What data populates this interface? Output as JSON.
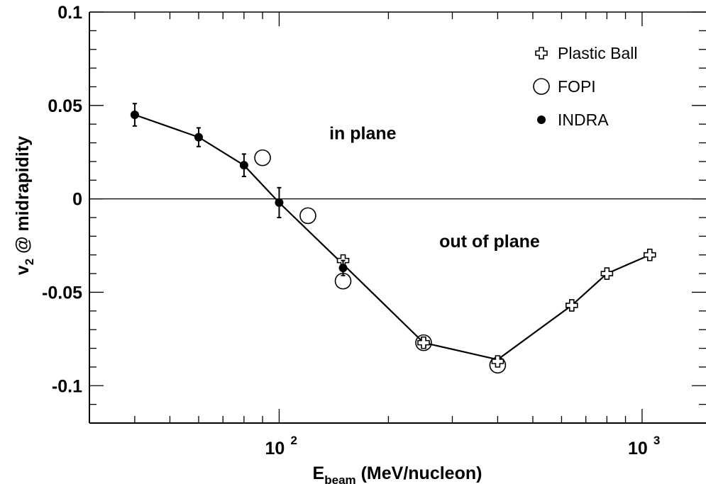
{
  "chart_data": {
    "type": "scatter",
    "x_scale": "log",
    "xlim": [
      30,
      1500
    ],
    "ylim": [
      -0.12,
      0.1
    ],
    "xlabel": {
      "main": "E",
      "sub": "beam",
      "units": " (MeV/nucleon)"
    },
    "ylabel": {
      "main": "v",
      "sub": "2",
      "rest": " @ midrapidity"
    },
    "y_ticks": [
      {
        "value": 0.1,
        "label": "0.1"
      },
      {
        "value": 0.05,
        "label": "0.05"
      },
      {
        "value": 0,
        "label": "0"
      },
      {
        "value": -0.05,
        "label": "-0.05"
      },
      {
        "value": -0.1,
        "label": "-0.1"
      }
    ],
    "x_ticks": [
      {
        "value": 100,
        "base": "10",
        "exp": "2"
      },
      {
        "value": 1000,
        "base": "10",
        "exp": "3"
      }
    ],
    "zero_line": true,
    "legend_position": "top-right",
    "annotations": [
      {
        "text": "in plane",
        "x": 170,
        "y": 0.032
      },
      {
        "text": "out of plane",
        "x": 380,
        "y": -0.026
      }
    ],
    "series": [
      {
        "name": "Plastic Ball",
        "marker": "open-cross",
        "points": [
          {
            "x": 150,
            "y": -0.033
          },
          {
            "x": 250,
            "y": -0.077
          },
          {
            "x": 400,
            "y": -0.087
          },
          {
            "x": 640,
            "y": -0.057
          },
          {
            "x": 800,
            "y": -0.04
          },
          {
            "x": 1050,
            "y": -0.03
          }
        ]
      },
      {
        "name": "FOPI",
        "marker": "open-circle",
        "points": [
          {
            "x": 90,
            "y": 0.022
          },
          {
            "x": 120,
            "y": -0.009
          },
          {
            "x": 150,
            "y": -0.044
          },
          {
            "x": 250,
            "y": -0.077
          },
          {
            "x": 400,
            "y": -0.089
          }
        ]
      },
      {
        "name": "INDRA",
        "marker": "filled-circle",
        "points": [
          {
            "x": 40,
            "y": 0.045,
            "err": 0.006
          },
          {
            "x": 60,
            "y": 0.033,
            "err": 0.005
          },
          {
            "x": 80,
            "y": 0.018,
            "err": 0.006
          },
          {
            "x": 100,
            "y": -0.002,
            "err": 0.008
          },
          {
            "x": 150,
            "y": -0.037,
            "err": 0.004
          }
        ]
      }
    ],
    "line": [
      {
        "x": 40,
        "y": 0.045
      },
      {
        "x": 60,
        "y": 0.033
      },
      {
        "x": 80,
        "y": 0.018
      },
      {
        "x": 100,
        "y": -0.002
      },
      {
        "x": 150,
        "y": -0.035
      },
      {
        "x": 250,
        "y": -0.077
      },
      {
        "x": 400,
        "y": -0.086
      },
      {
        "x": 640,
        "y": -0.057
      },
      {
        "x": 800,
        "y": -0.04
      },
      {
        "x": 1050,
        "y": -0.03
      }
    ]
  }
}
